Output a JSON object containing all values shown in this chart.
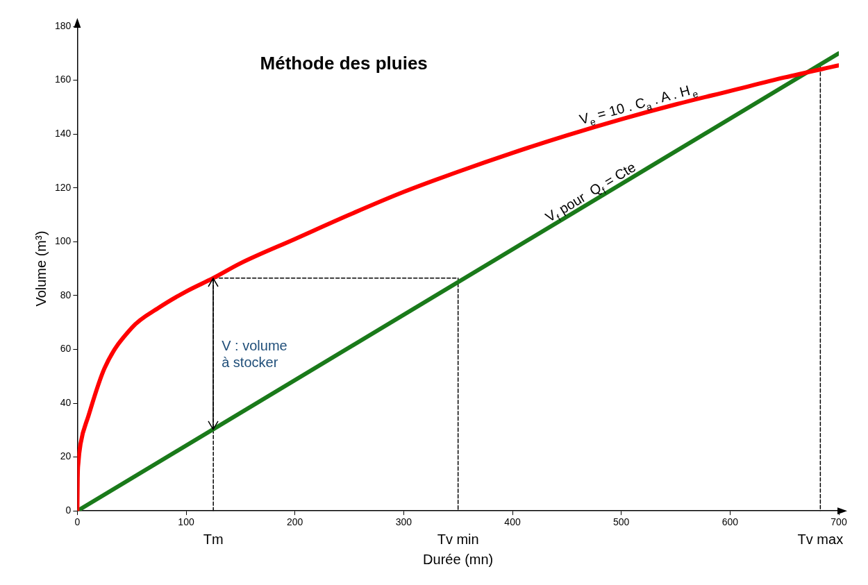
{
  "chart_data": {
    "type": "line",
    "title": "Méthode des pluies",
    "xlabel": "Durée (mn)",
    "ylabel": "Volume (m³)",
    "series": [
      {
        "name": "V$_{e}$ = 10 . C$_{a}$ . A . H$_{e}$",
        "color": "#ff0000",
        "x": [
          0,
          0.3,
          1,
          3,
          10,
          25,
          50,
          75,
          100,
          125,
          150,
          200,
          250,
          300,
          350,
          400,
          450,
          500,
          550,
          600,
          650,
          700
        ],
        "values": [
          0,
          12,
          18,
          25,
          35,
          53,
          68,
          75.5,
          81.5,
          86.5,
          92,
          101,
          110,
          118.5,
          126,
          133,
          139.5,
          145.5,
          151,
          156,
          161,
          165.5
        ]
      },
      {
        "name": "V$_{f}$ pour  Q$_{f}$ = Cte",
        "color": "#1a7a1a",
        "x": [
          0,
          700
        ],
        "values": [
          0,
          170
        ]
      },
      {
        "color": "#000000",
        "line_style": "dashed",
        "x": [
          125,
          125,
          350,
          350
        ],
        "values": [
          0,
          86.5,
          86.5,
          0
        ]
      },
      {
        "color": "#000000",
        "line_style": "dashed",
        "x": [
          683,
          683
        ],
        "values": [
          165,
          0
        ]
      }
    ],
    "xlim": [
      0,
      700
    ],
    "xticks": [
      0,
      100,
      200,
      300,
      400,
      500,
      600,
      700
    ],
    "ylim": [
      0,
      180
    ],
    "yticks": [
      0,
      20,
      40,
      60,
      80,
      100,
      120,
      140,
      160,
      180
    ],
    "legend": false,
    "marker": "none",
    "annotations": [
      {
        "text": "Tm",
        "x": 125,
        "y": 0
      },
      {
        "text": "Tv min",
        "x": 350,
        "y": 0
      },
      {
        "text": "Tv max",
        "x": 683,
        "y": 0
      },
      {
        "text": "V : volume à stocker",
        "x": 125,
        "y": 58
      }
    ]
  }
}
